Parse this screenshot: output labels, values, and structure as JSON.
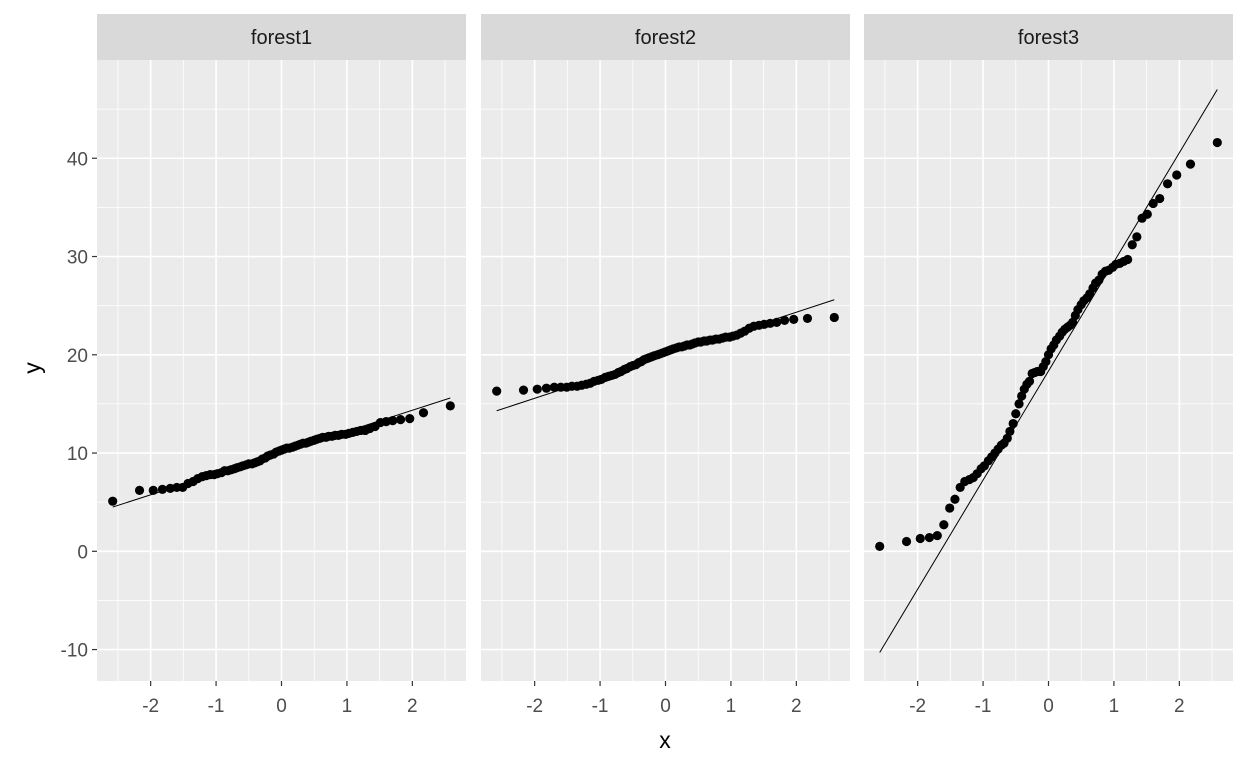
{
  "chart_data": {
    "type": "scatter",
    "subtype": "qq-plot-facets",
    "xlabel": "x",
    "ylabel": "y",
    "x_ticks": [
      -2,
      -1,
      0,
      1,
      2
    ],
    "x_tick_labels": [
      "-2",
      "-1",
      "0",
      "1",
      "2"
    ],
    "y_ticks": [
      -10,
      0,
      10,
      20,
      30,
      40
    ],
    "y_tick_labels": [
      "-10",
      "0",
      "10",
      "20",
      "30",
      "40"
    ],
    "xlim": [
      -2.82,
      2.82
    ],
    "ylim": [
      -13.2,
      50.0
    ],
    "grid": true,
    "facets": [
      {
        "label": "forest1",
        "qq_line": {
          "x": [
            -2.58,
            2.58
          ],
          "y": [
            4.5,
            15.6
          ]
        },
        "points": [
          [
            -2.58,
            5.1
          ],
          [
            -2.17,
            6.2
          ],
          [
            -1.96,
            6.2
          ],
          [
            -1.82,
            6.3
          ],
          [
            -1.7,
            6.4
          ],
          [
            -1.6,
            6.5
          ],
          [
            -1.51,
            6.5
          ],
          [
            -1.43,
            6.9
          ],
          [
            -1.35,
            7.1
          ],
          [
            -1.28,
            7.4
          ],
          [
            -1.21,
            7.6
          ],
          [
            -1.15,
            7.7
          ],
          [
            -1.09,
            7.8
          ],
          [
            -1.03,
            7.8
          ],
          [
            -0.98,
            7.9
          ],
          [
            -0.92,
            8.0
          ],
          [
            -0.87,
            8.2
          ],
          [
            -0.82,
            8.2
          ],
          [
            -0.77,
            8.3
          ],
          [
            -0.72,
            8.4
          ],
          [
            -0.68,
            8.5
          ],
          [
            -0.63,
            8.6
          ],
          [
            -0.59,
            8.7
          ],
          [
            -0.54,
            8.8
          ],
          [
            -0.5,
            8.9
          ],
          [
            -0.45,
            8.9
          ],
          [
            -0.41,
            9.0
          ],
          [
            -0.37,
            9.1
          ],
          [
            -0.33,
            9.2
          ],
          [
            -0.29,
            9.4
          ],
          [
            -0.25,
            9.5
          ],
          [
            -0.21,
            9.7
          ],
          [
            -0.17,
            9.8
          ],
          [
            -0.12,
            9.9
          ],
          [
            -0.08,
            10.1
          ],
          [
            -0.04,
            10.2
          ],
          [
            0.0,
            10.3
          ],
          [
            0.04,
            10.4
          ],
          [
            0.08,
            10.5
          ],
          [
            0.12,
            10.5
          ],
          [
            0.17,
            10.6
          ],
          [
            0.21,
            10.7
          ],
          [
            0.25,
            10.8
          ],
          [
            0.29,
            10.9
          ],
          [
            0.33,
            11.0
          ],
          [
            0.37,
            11.0
          ],
          [
            0.41,
            11.1
          ],
          [
            0.45,
            11.2
          ],
          [
            0.5,
            11.3
          ],
          [
            0.54,
            11.4
          ],
          [
            0.59,
            11.5
          ],
          [
            0.63,
            11.6
          ],
          [
            0.68,
            11.6
          ],
          [
            0.72,
            11.7
          ],
          [
            0.77,
            11.7
          ],
          [
            0.82,
            11.8
          ],
          [
            0.87,
            11.8
          ],
          [
            0.92,
            11.9
          ],
          [
            0.98,
            11.9
          ],
          [
            1.03,
            12.0
          ],
          [
            1.09,
            12.1
          ],
          [
            1.15,
            12.2
          ],
          [
            1.21,
            12.3
          ],
          [
            1.28,
            12.3
          ],
          [
            1.35,
            12.5
          ],
          [
            1.43,
            12.7
          ],
          [
            1.51,
            13.1
          ],
          [
            1.6,
            13.2
          ],
          [
            1.7,
            13.3
          ],
          [
            1.82,
            13.4
          ],
          [
            1.96,
            13.5
          ],
          [
            2.17,
            14.1
          ],
          [
            2.58,
            14.8
          ]
        ]
      },
      {
        "label": "forest2",
        "qq_line": {
          "x": [
            -2.58,
            2.58
          ],
          "y": [
            14.3,
            25.6
          ]
        },
        "points": [
          [
            -2.58,
            16.3
          ],
          [
            -2.17,
            16.4
          ],
          [
            -1.96,
            16.5
          ],
          [
            -1.82,
            16.6
          ],
          [
            -1.7,
            16.7
          ],
          [
            -1.6,
            16.7
          ],
          [
            -1.51,
            16.7
          ],
          [
            -1.43,
            16.8
          ],
          [
            -1.35,
            16.8
          ],
          [
            -1.28,
            16.9
          ],
          [
            -1.21,
            17.0
          ],
          [
            -1.15,
            17.1
          ],
          [
            -1.09,
            17.3
          ],
          [
            -1.03,
            17.4
          ],
          [
            -0.98,
            17.5
          ],
          [
            -0.92,
            17.7
          ],
          [
            -0.87,
            17.8
          ],
          [
            -0.82,
            17.9
          ],
          [
            -0.77,
            18.0
          ],
          [
            -0.72,
            18.2
          ],
          [
            -0.68,
            18.3
          ],
          [
            -0.63,
            18.5
          ],
          [
            -0.59,
            18.6
          ],
          [
            -0.54,
            18.8
          ],
          [
            -0.5,
            18.9
          ],
          [
            -0.45,
            19.0
          ],
          [
            -0.41,
            19.2
          ],
          [
            -0.37,
            19.3
          ],
          [
            -0.33,
            19.5
          ],
          [
            -0.29,
            19.6
          ],
          [
            -0.25,
            19.7
          ],
          [
            -0.21,
            19.8
          ],
          [
            -0.17,
            19.9
          ],
          [
            -0.12,
            20.0
          ],
          [
            -0.08,
            20.1
          ],
          [
            -0.04,
            20.2
          ],
          [
            0.0,
            20.3
          ],
          [
            0.04,
            20.4
          ],
          [
            0.08,
            20.5
          ],
          [
            0.12,
            20.6
          ],
          [
            0.17,
            20.7
          ],
          [
            0.21,
            20.8
          ],
          [
            0.25,
            20.8
          ],
          [
            0.29,
            20.9
          ],
          [
            0.33,
            21.0
          ],
          [
            0.37,
            21.0
          ],
          [
            0.41,
            21.1
          ],
          [
            0.45,
            21.2
          ],
          [
            0.5,
            21.3
          ],
          [
            0.54,
            21.3
          ],
          [
            0.59,
            21.4
          ],
          [
            0.63,
            21.4
          ],
          [
            0.68,
            21.5
          ],
          [
            0.72,
            21.5
          ],
          [
            0.77,
            21.6
          ],
          [
            0.82,
            21.6
          ],
          [
            0.87,
            21.7
          ],
          [
            0.92,
            21.8
          ],
          [
            0.98,
            21.8
          ],
          [
            1.03,
            21.9
          ],
          [
            1.09,
            22.0
          ],
          [
            1.15,
            22.2
          ],
          [
            1.21,
            22.4
          ],
          [
            1.28,
            22.7
          ],
          [
            1.35,
            22.9
          ],
          [
            1.43,
            23.0
          ],
          [
            1.51,
            23.1
          ],
          [
            1.6,
            23.2
          ],
          [
            1.7,
            23.3
          ],
          [
            1.82,
            23.5
          ],
          [
            1.96,
            23.6
          ],
          [
            2.17,
            23.7
          ],
          [
            2.58,
            23.8
          ]
        ]
      },
      {
        "label": "forest3",
        "qq_line": {
          "x": [
            -2.58,
            2.58
          ],
          "y": [
            -10.3,
            47.0
          ]
        },
        "points": [
          [
            -2.58,
            0.5
          ],
          [
            -2.17,
            1.0
          ],
          [
            -1.96,
            1.3
          ],
          [
            -1.82,
            1.4
          ],
          [
            -1.7,
            1.6
          ],
          [
            -1.6,
            2.7
          ],
          [
            -1.51,
            4.4
          ],
          [
            -1.43,
            5.3
          ],
          [
            -1.35,
            6.5
          ],
          [
            -1.28,
            7.1
          ],
          [
            -1.21,
            7.3
          ],
          [
            -1.15,
            7.5
          ],
          [
            -1.09,
            7.9
          ],
          [
            -1.03,
            8.4
          ],
          [
            -0.98,
            8.7
          ],
          [
            -0.92,
            9.2
          ],
          [
            -0.87,
            9.6
          ],
          [
            -0.82,
            10.0
          ],
          [
            -0.77,
            10.4
          ],
          [
            -0.72,
            10.8
          ],
          [
            -0.68,
            11.0
          ],
          [
            -0.63,
            11.5
          ],
          [
            -0.59,
            12.2
          ],
          [
            -0.54,
            13.0
          ],
          [
            -0.5,
            14.0
          ],
          [
            -0.45,
            15.0
          ],
          [
            -0.41,
            15.8
          ],
          [
            -0.37,
            16.5
          ],
          [
            -0.33,
            17.0
          ],
          [
            -0.29,
            17.3
          ],
          [
            -0.25,
            18.1
          ],
          [
            -0.21,
            18.2
          ],
          [
            -0.17,
            18.3
          ],
          [
            -0.12,
            18.3
          ],
          [
            -0.08,
            18.8
          ],
          [
            -0.04,
            19.3
          ],
          [
            0.0,
            20.0
          ],
          [
            0.04,
            20.6
          ],
          [
            0.08,
            21.0
          ],
          [
            0.12,
            21.5
          ],
          [
            0.17,
            21.9
          ],
          [
            0.21,
            22.3
          ],
          [
            0.25,
            22.6
          ],
          [
            0.29,
            22.8
          ],
          [
            0.33,
            23.0
          ],
          [
            0.37,
            23.3
          ],
          [
            0.41,
            24.0
          ],
          [
            0.45,
            24.6
          ],
          [
            0.5,
            25.1
          ],
          [
            0.54,
            25.5
          ],
          [
            0.59,
            25.8
          ],
          [
            0.63,
            26.2
          ],
          [
            0.68,
            26.8
          ],
          [
            0.72,
            27.3
          ],
          [
            0.77,
            27.6
          ],
          [
            0.82,
            28.2
          ],
          [
            0.87,
            28.5
          ],
          [
            0.92,
            28.6
          ],
          [
            0.98,
            28.9
          ],
          [
            1.03,
            29.2
          ],
          [
            1.09,
            29.3
          ],
          [
            1.15,
            29.5
          ],
          [
            1.21,
            29.7
          ],
          [
            1.28,
            31.2
          ],
          [
            1.35,
            32.0
          ],
          [
            1.43,
            33.9
          ],
          [
            1.51,
            34.3
          ],
          [
            1.6,
            35.4
          ],
          [
            1.7,
            35.9
          ],
          [
            1.82,
            37.4
          ],
          [
            1.96,
            38.3
          ],
          [
            2.17,
            39.4
          ],
          [
            2.58,
            41.6
          ]
        ]
      }
    ]
  }
}
